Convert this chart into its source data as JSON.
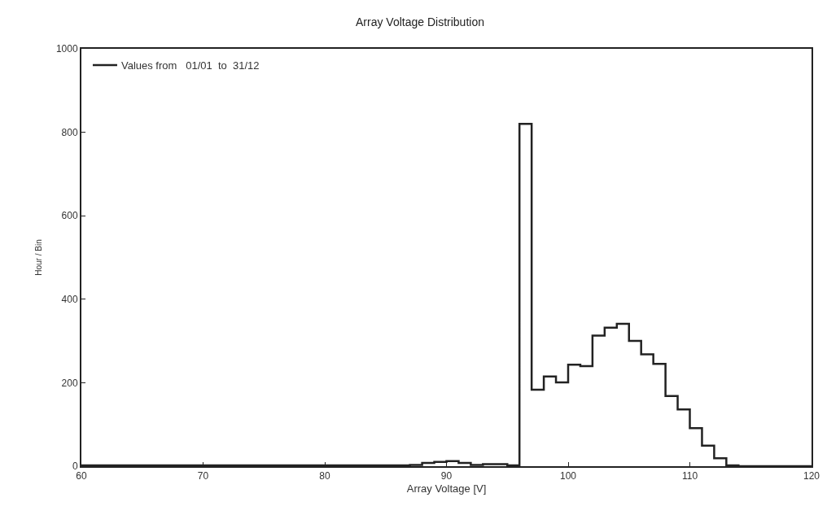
{
  "chart_data": {
    "type": "histogram",
    "title": "Array Voltage Distribution",
    "xlabel": "Array Voltage [V]",
    "ylabel": "Hour / Bin",
    "bins": [
      60,
      61,
      62,
      63,
      64,
      65,
      66,
      67,
      68,
      69,
      70,
      71,
      72,
      73,
      74,
      75,
      76,
      77,
      78,
      79,
      80,
      81,
      82,
      83,
      84,
      85,
      86,
      87,
      88,
      89,
      90,
      91,
      92,
      93,
      94,
      95,
      96,
      97,
      98,
      99,
      100,
      101,
      102,
      103,
      104,
      105,
      106,
      107,
      108,
      109,
      110,
      111,
      112,
      113,
      114,
      115,
      116,
      117,
      118,
      119,
      120
    ],
    "series": [
      {
        "name": "Values from   01/01  to  31/12",
        "color": "#222222",
        "values": [
          2,
          2,
          2,
          2,
          2,
          2,
          2,
          2,
          2,
          2,
          2,
          2,
          2,
          2,
          2,
          2,
          2,
          2,
          2,
          2,
          2,
          2,
          2,
          2,
          2,
          2,
          2,
          3,
          8,
          10,
          12,
          8,
          3,
          5,
          5,
          2,
          820,
          183,
          215,
          201,
          243,
          240,
          313,
          332,
          341,
          300,
          268,
          245,
          168,
          136,
          91,
          49,
          19,
          2,
          0,
          0,
          0,
          0,
          0,
          0
        ]
      }
    ],
    "xlim": [
      60,
      120
    ],
    "xticks": [
      60,
      70,
      80,
      90,
      100,
      110,
      120
    ],
    "ylim": [
      0,
      1000
    ],
    "yticks": [
      0,
      200,
      400,
      600,
      800,
      1000
    ],
    "legend": "top left"
  }
}
